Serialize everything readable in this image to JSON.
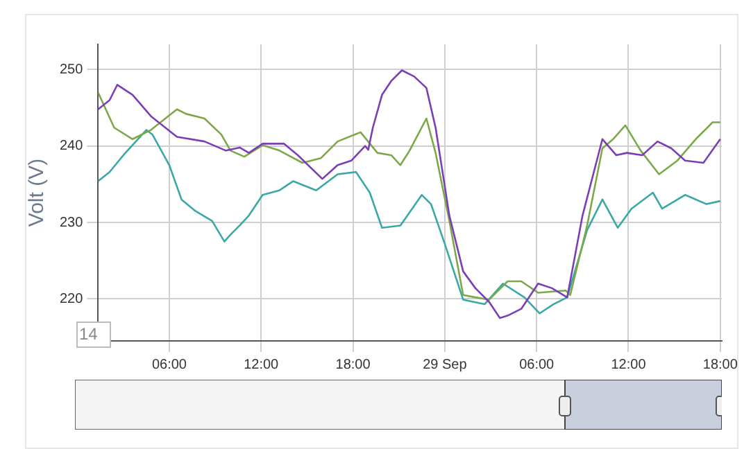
{
  "chart_data": {
    "type": "line",
    "ylabel": "Volt (V)",
    "xlim": [
      "--09-28T01:21",
      "--09-29T18:06"
    ],
    "ylim": [
      214.5,
      253.3
    ],
    "xticks": [
      {
        "value": "--09-28T06:00",
        "label": "06:00"
      },
      {
        "value": "--09-28T12:00",
        "label": "12:00"
      },
      {
        "value": "--09-28T18:00",
        "label": "18:00"
      },
      {
        "value": "--09-29",
        "label": "29 Sep"
      },
      {
        "value": "--09-29T06:00",
        "label": "06:00"
      },
      {
        "value": "--09-29T12:00",
        "label": "12:00"
      },
      {
        "value": "--09-29T18:00",
        "label": "18:00"
      }
    ],
    "yticks": [
      220,
      230,
      240,
      250
    ],
    "grid": true,
    "legend": false,
    "marker": "none",
    "line_style": "solid",
    "annotations": [
      "14"
    ],
    "series": [
      {
        "color": "#7b3fb5",
        "x": [
          "--09-28T01:21",
          "--09-28T02:06",
          "--09-28T02:36",
          "--09-28T03:36",
          "--09-28T04:48",
          "--09-28T06:30",
          "--09-28T08:18",
          "--09-28T09:42",
          "--09-28T10:36",
          "--09-28T11:12",
          "--09-28T12:06",
          "--09-28T13:30",
          "--09-28T14:24",
          "--09-28T16:00",
          "--09-28T17:00",
          "--09-28T17:54",
          "--09-28T18:48",
          "--09-28T19:00",
          "--09-28T19:18",
          "--09-28T19:54",
          "--09-28T20:30",
          "--09-28T21:12",
          "--09-28T22:00",
          "--09-28T22:48",
          "--09-28T23:24",
          "--09-29T00:18",
          "--09-29T01:12",
          "--09-29T02:00",
          "--09-29T02:54",
          "--09-29T03:36",
          "--09-29T04:06",
          "--09-29T05:00",
          "--09-29T05:24",
          "--09-29T06:06",
          "--09-29T07:00",
          "--09-29T08:00",
          "--09-29T09:00",
          "--09-29T10:18",
          "--09-29T11:12",
          "--09-29T11:54",
          "--09-29T12:54",
          "--09-29T13:54",
          "--09-29T14:48",
          "--09-29T15:42",
          "--09-29T16:54",
          "--09-29T18:00"
        ],
        "values": [
          244.8,
          246,
          248,
          246.7,
          243.9,
          241.2,
          240.6,
          239.4,
          239.8,
          239.1,
          240.3,
          240.3,
          238.8,
          235.7,
          237.5,
          238.1,
          240,
          239.5,
          242.4,
          246.7,
          248.5,
          249.9,
          249.1,
          247.6,
          242.4,
          230.9,
          223.6,
          221.4,
          219.6,
          217.5,
          217.8,
          218.7,
          219.9,
          222,
          221.4,
          220.2,
          230.9,
          240.9,
          238.8,
          239.1,
          238.8,
          240.6,
          239.7,
          238.1,
          237.8,
          240.9
        ]
      },
      {
        "color": "#7da84a",
        "x": [
          "--09-28T01:21",
          "--09-28T02:24",
          "--09-28T03:36",
          "--09-28T04:48",
          "--09-28T06:30",
          "--09-28T07:06",
          "--09-28T08:18",
          "--09-28T09:24",
          "--09-28T10:00",
          "--09-28T10:54",
          "--09-28T12:06",
          "--09-28T13:12",
          "--09-28T14:42",
          "--09-28T15:54",
          "--09-28T17:00",
          "--09-28T18:30",
          "--09-28T19:36",
          "--09-28T20:30",
          "--09-28T21:06",
          "--09-28T21:42",
          "--09-28T22:48",
          "--09-28T23:24",
          "--09-29T00:18",
          "--09-29T01:12",
          "--09-29T02:00",
          "--09-29T02:54",
          "--09-29T04:06",
          "--09-29T05:00",
          "--09-29T06:06",
          "--09-29T07:54",
          "--09-29T08:12",
          "--09-29T09:18",
          "--09-29T10:18",
          "--09-29T11:00",
          "--09-29T11:48",
          "--09-29T12:48",
          "--09-29T14:00",
          "--09-29T15:12",
          "--09-29T16:24",
          "--09-29T17:30",
          "--09-29T18:00"
        ],
        "values": [
          247,
          242.4,
          240.9,
          242.1,
          244.8,
          244.2,
          243.6,
          241.5,
          239.4,
          238.6,
          240.1,
          239.4,
          237.8,
          238.4,
          240.6,
          241.8,
          239.1,
          238.8,
          237.5,
          239.4,
          243.6,
          239.1,
          230.2,
          220.5,
          220.2,
          219.9,
          222.3,
          222.3,
          220.8,
          221.1,
          220.5,
          229.6,
          239.7,
          240.9,
          242.7,
          239.4,
          236.3,
          238.1,
          240.9,
          243.1,
          243.1
        ]
      },
      {
        "color": "#3aa8a4",
        "x": [
          "--09-28T01:21",
          "--09-28T02:06",
          "--09-28T03:00",
          "--09-28T04:30",
          "--09-28T04:54",
          "--09-28T06:00",
          "--09-28T06:48",
          "--09-28T07:42",
          "--09-28T08:48",
          "--09-28T09:36",
          "--09-28T10:00",
          "--09-28T10:36",
          "--09-28T11:12",
          "--09-28T12:06",
          "--09-28T13:12",
          "--09-28T14:06",
          "--09-28T15:36",
          "--09-28T17:00",
          "--09-28T18:12",
          "--09-28T19:06",
          "--09-28T19:54",
          "--09-28T21:06",
          "--09-28T22:30",
          "--09-28T23:06",
          "--09-29T00:00",
          "--09-29T01:12",
          "--09-29T02:36",
          "--09-29T03:48",
          "--09-29T05:12",
          "--09-29T06:12",
          "--09-29T07:06",
          "--09-29T08:00",
          "--09-29T09:18",
          "--09-29T10:18",
          "--09-29T11:18",
          "--09-29T12:12",
          "--09-29T13:36",
          "--09-29T14:12",
          "--09-29T15:42",
          "--09-29T17:06",
          "--09-29T18:00"
        ],
        "values": [
          235.4,
          236.6,
          238.8,
          242.1,
          241.5,
          237.5,
          233,
          231.5,
          230.2,
          227.5,
          228.4,
          229.6,
          230.9,
          233.6,
          234.2,
          235.4,
          234.2,
          236.3,
          236.6,
          233.9,
          229.3,
          229.6,
          233.6,
          232.4,
          227.2,
          219.9,
          219.3,
          222,
          220.2,
          218.1,
          219.3,
          220.2,
          229,
          233,
          229.3,
          231.8,
          233.9,
          231.8,
          233.6,
          232.4,
          232.8
        ]
      }
    ]
  }
}
